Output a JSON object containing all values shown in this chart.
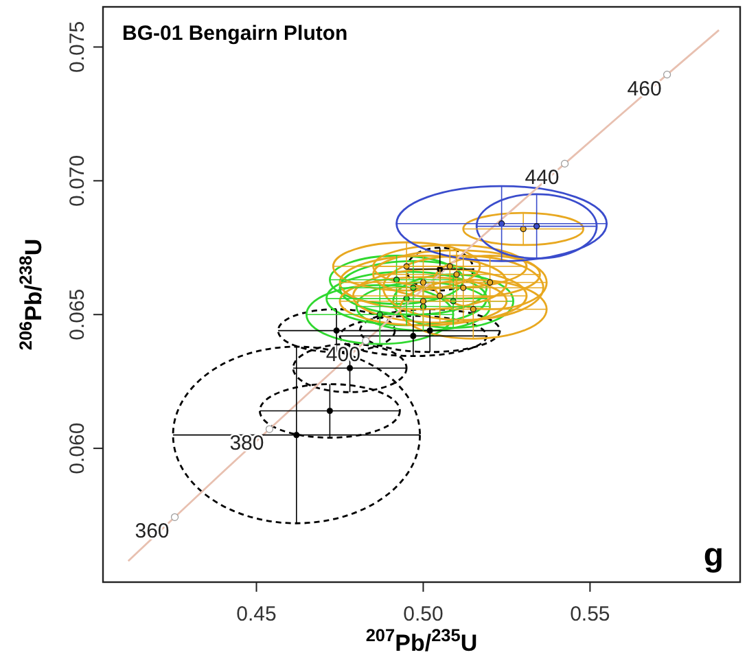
{
  "chart_data": {
    "type": "scatter",
    "title": "BG-01 Bengairn Pluton",
    "xlabel": "$^{207}$Pb/$^{235}$U",
    "ylabel": "$^{206}$Pb/$^{238}$U",
    "xlim": [
      0.404,
      0.595
    ],
    "ylim": [
      0.055,
      0.0765
    ],
    "xticks": [
      {
        "value": 0.45,
        "label": "0.45"
      },
      {
        "value": 0.5,
        "label": "0.50"
      },
      {
        "value": 0.55,
        "label": "0.55"
      }
    ],
    "yticks": [
      {
        "value": 0.06,
        "label": "0.060"
      },
      {
        "value": 0.065,
        "label": "0.065"
      },
      {
        "value": 0.07,
        "label": "0.070"
      },
      {
        "value": 0.075,
        "label": "0.075"
      }
    ],
    "grid": false,
    "series": [
      {
        "type": "line",
        "color": "#e8c0b0",
        "marker": "none",
        "line_style": "solid",
        "x": [
          0.41157,
          0.42552,
          0.43964,
          0.4539,
          0.46831,
          0.4828,
          0.49746,
          0.51223,
          0.52728,
          0.54243,
          0.55766,
          0.5731,
          0.58864
        ],
        "values": [
          0.05579,
          0.05743,
          0.05908,
          0.06072,
          0.06237,
          0.06402,
          0.06567,
          0.06732,
          0.06898,
          0.07064,
          0.0723,
          0.07397,
          0.07563
        ]
      },
      {
        "color": "#000000",
        "marker": "circle",
        "line_style": "dashed",
        "x": [
          0.462,
          0.472,
          0.478,
          0.474,
          0.497,
          0.502,
          0.505
        ],
        "values": [
          0.0605,
          0.0614,
          0.063,
          0.0644,
          0.0642,
          0.0644,
          0.0667
        ],
        "xerrors": [
          0.037,
          0.021,
          0.017,
          0.0175,
          0.022,
          0.021,
          0.01
        ],
        "errors": [
          0.0033,
          0.001,
          0.0009,
          0.0008,
          0.00075,
          0.0008,
          0.0008
        ]
      },
      {
        "color": "#30d830",
        "marker": "circle",
        "line_style": "solid",
        "x": [
          0.487,
          0.495,
          0.497,
          0.5,
          0.492,
          0.509
        ],
        "values": [
          0.065,
          0.0656,
          0.066,
          0.0653,
          0.0663,
          0.0655
        ],
        "xerrors": [
          0.022,
          0.024,
          0.022,
          0.02,
          0.02,
          0.018
        ],
        "errors": [
          0.0011,
          0.001,
          0.001,
          0.0009,
          0.0009,
          0.001
        ]
      },
      {
        "color": "#e8a820",
        "marker": "circle",
        "line_style": "solid",
        "x": [
          0.5,
          0.51,
          0.505,
          0.515,
          0.495,
          0.512,
          0.508,
          0.52,
          0.53,
          0.5
        ],
        "values": [
          0.0662,
          0.0665,
          0.0657,
          0.0652,
          0.0668,
          0.066,
          0.0668,
          0.0662,
          0.0682,
          0.0655
        ],
        "xerrors": [
          0.025,
          0.025,
          0.026,
          0.022,
          0.022,
          0.024,
          0.023,
          0.017,
          0.018,
          0.025
        ],
        "errors": [
          0.001,
          0.0009,
          0.001,
          0.0011,
          0.0009,
          0.0012,
          0.0008,
          0.001,
          0.0006,
          0.0009
        ]
      },
      {
        "color": "#3a4ccc",
        "marker": "circle",
        "line_style": "solid",
        "x": [
          0.5235,
          0.534
        ],
        "values": [
          0.0684,
          0.0683
        ],
        "xerrors": [
          0.0315,
          0.018
        ],
        "errors": [
          0.0014,
          0.0012
        ]
      }
    ],
    "annotations": [
      {
        "text": "360",
        "x": 0.42552,
        "y": 0.05743
      },
      {
        "text": "380",
        "x": 0.4539,
        "y": 0.06072
      },
      {
        "text": "400",
        "x": 0.4828,
        "y": 0.06402
      },
      {
        "text": "440",
        "x": 0.54243,
        "y": 0.07064
      },
      {
        "text": "460",
        "x": 0.5731,
        "y": 0.07397
      },
      "g"
    ]
  }
}
